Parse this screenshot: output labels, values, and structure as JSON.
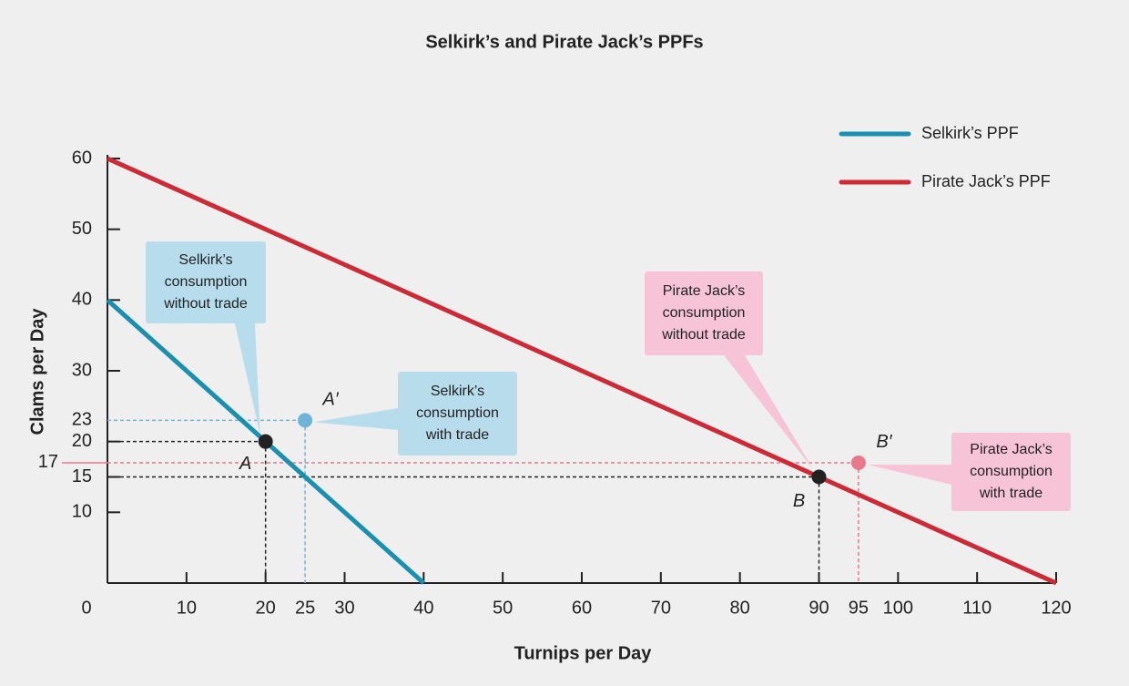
{
  "chart_data": {
    "type": "line",
    "title": "Selkirk’s and Pirate Jack’s PPFs",
    "x_label": "Turnips per Day",
    "y_label": "Clams per Day",
    "xlim": [
      0,
      120
    ],
    "ylim": [
      0,
      60
    ],
    "xticks": [
      0,
      10,
      20,
      30,
      40,
      50,
      60,
      70,
      80,
      90,
      100,
      110,
      120
    ],
    "yticks": [
      10,
      15,
      20,
      30,
      40,
      50,
      60
    ],
    "legend": "upper right",
    "series": [
      {
        "name": "Selkirk’s PPF",
        "color": "#1a8fb0",
        "x": [
          0,
          40
        ],
        "values": [
          40,
          0
        ]
      },
      {
        "name": "Pirate Jack’s PPF",
        "color": "#cc2a36",
        "x": [
          0,
          120
        ],
        "values": [
          60,
          0
        ]
      }
    ],
    "points": [
      {
        "label": "A",
        "x": 20,
        "y": 20,
        "color": "#222222"
      },
      {
        "label": "A′",
        "x": 25,
        "y": 23,
        "color": "#6fb3d6"
      },
      {
        "label": "B",
        "x": 90,
        "y": 15,
        "color": "#222222"
      },
      {
        "label": "B′",
        "x": 95,
        "y": 17,
        "color": "#e8788a"
      }
    ],
    "annotations": [
      {
        "lines": [
          "Selkirk’s",
          "consumption",
          "without trade"
        ],
        "color": "#b7dcec"
      },
      {
        "lines": [
          "Selkirk’s",
          "consumption",
          "with trade"
        ],
        "color": "#b7dcec"
      },
      {
        "lines": [
          "Pirate Jack’s",
          "consumption",
          "without trade"
        ],
        "color": "#f7c3d6"
      },
      {
        "lines": [
          "Pirate Jack’s",
          "consumption",
          "with trade"
        ],
        "color": "#f7c3d6"
      }
    ]
  }
}
